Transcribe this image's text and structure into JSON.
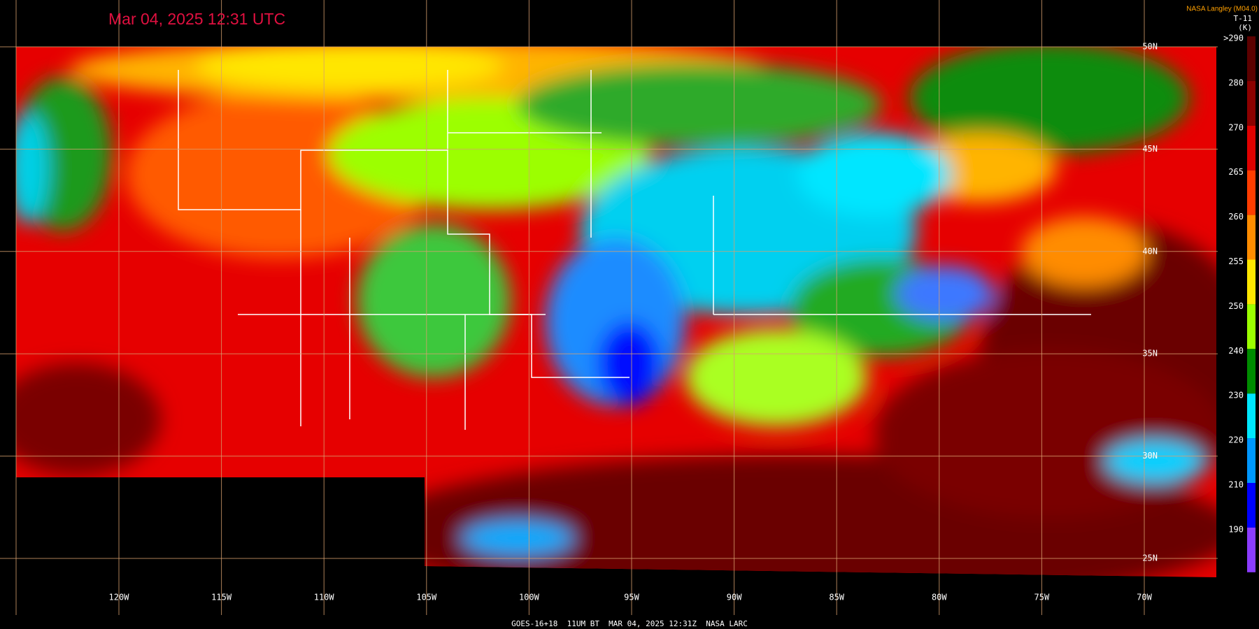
{
  "header": {
    "timestamp": "Mar 04, 2025 12:31 UTC",
    "credit": "NASA Langley (M04.0)"
  },
  "colorbar": {
    "title": "T-11",
    "unit": "(K)",
    "entries": [
      {
        "label": ">290",
        "color": "#5c0000"
      },
      {
        "label": "280",
        "color": "#8c0000"
      },
      {
        "label": "270",
        "color": "#e00000"
      },
      {
        "label": "265",
        "color": "#ff3c00"
      },
      {
        "label": "260",
        "color": "#ff8c00"
      },
      {
        "label": "255",
        "color": "#ffe600"
      },
      {
        "label": "250",
        "color": "#9cff00"
      },
      {
        "label": "240",
        "color": "#008c00"
      },
      {
        "label": "230",
        "color": "#00e6ff"
      },
      {
        "label": "220",
        "color": "#0096ff"
      },
      {
        "label": "210",
        "color": "#0000ff"
      },
      {
        "label": "190",
        "color": "#8c3cff"
      }
    ]
  },
  "longitudes": [
    "120W",
    "115W",
    "110W",
    "105W",
    "100W",
    "95W",
    "90W",
    "85W",
    "80W",
    "75W",
    "70W"
  ],
  "latitudes": [
    "50N",
    "45N",
    "40N",
    "35N",
    "30N",
    "25N"
  ],
  "footer": "GOES-16+18  11UM BT  MAR 04, 2025 12:31Z  NASA LARC"
}
